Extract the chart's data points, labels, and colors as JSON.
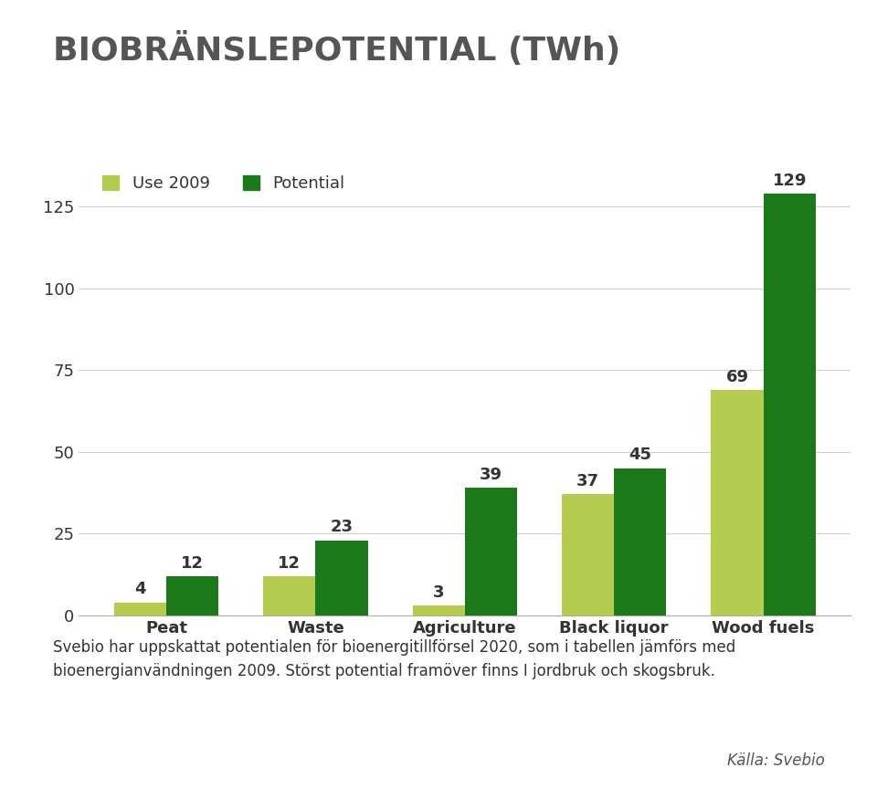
{
  "title": "BIOBRÄNSLEPOTENTIAL (TWh)",
  "categories": [
    "Peat",
    "Waste",
    "Agriculture",
    "Black liquor",
    "Wood fuels"
  ],
  "use_2009": [
    4,
    12,
    3,
    37,
    69
  ],
  "potential": [
    12,
    23,
    39,
    45,
    129
  ],
  "color_use": "#b5cc4f",
  "color_potential": "#1a7a1a",
  "ylim": [
    0,
    140
  ],
  "yticks": [
    0,
    25,
    50,
    75,
    100,
    125
  ],
  "legend_use": "Use 2009",
  "legend_potential": "Potential",
  "footnote": "Svebio har uppskattat potentialen för bioenergitillförsel 2020, som i tabellen jämförs med\nbioenergianvändningen 2009. Störst potential framöver finns I jordbruk och skogsbruk.",
  "source": "Källa: Svebio",
  "background_color": "#ffffff",
  "bar_width": 0.35,
  "title_fontsize": 26,
  "label_fontsize": 13,
  "tick_fontsize": 13,
  "value_fontsize": 13,
  "legend_fontsize": 13,
  "footnote_fontsize": 12,
  "source_fontsize": 12
}
